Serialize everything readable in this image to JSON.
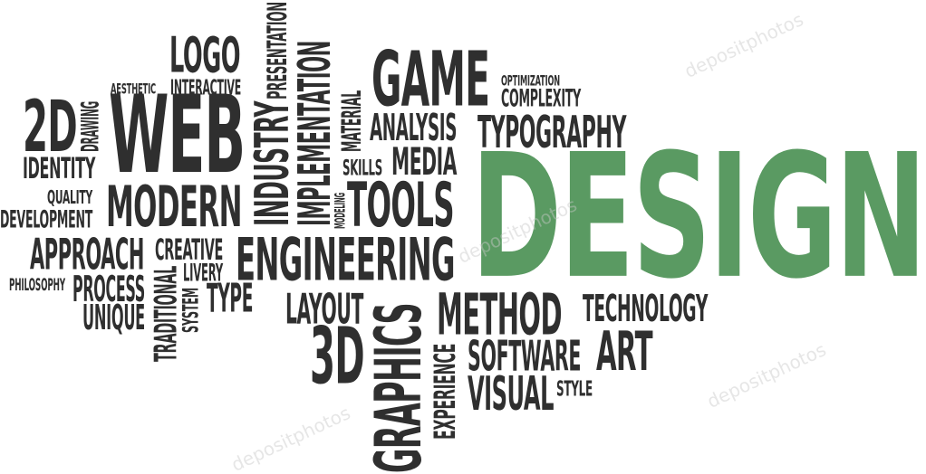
{
  "accent_color": "#5a9a62",
  "text_color": "#2f2f2f",
  "watermark": "depositphotos",
  "words": [
    {
      "key": "logo",
      "text": "LOGO"
    },
    {
      "key": "aesthetic",
      "text": "AESTHETIC"
    },
    {
      "key": "interactive",
      "text": "INTERACTIVE"
    },
    {
      "key": "presentation",
      "text": "PRESENTATION"
    },
    {
      "key": "implementation",
      "text": "IMPLEMENTATION"
    },
    {
      "key": "industry",
      "text": "INDUSTRY"
    },
    {
      "key": "material",
      "text": "MATERIAL"
    },
    {
      "key": "game",
      "text": "GAME"
    },
    {
      "key": "optimization",
      "text": "OPTIMIZATION"
    },
    {
      "key": "complexity",
      "text": "COMPLEXITY"
    },
    {
      "key": "2d",
      "text": "2D"
    },
    {
      "key": "drawing",
      "text": "DRAWING"
    },
    {
      "key": "web",
      "text": "WEB"
    },
    {
      "key": "analysis",
      "text": "ANALYSIS"
    },
    {
      "key": "typography",
      "text": "TYPOGRAPHY"
    },
    {
      "key": "identity",
      "text": "IDENTITY"
    },
    {
      "key": "skills",
      "text": "SKILLS"
    },
    {
      "key": "media",
      "text": "MEDIA"
    },
    {
      "key": "design",
      "text": "DESIGN"
    },
    {
      "key": "quality",
      "text": "QUALITY"
    },
    {
      "key": "development",
      "text": "DEVELOPMENT"
    },
    {
      "key": "modern",
      "text": "MODERN"
    },
    {
      "key": "modeling",
      "text": "MODELING"
    },
    {
      "key": "tools",
      "text": "TOOLS"
    },
    {
      "key": "approach",
      "text": "APPROACH"
    },
    {
      "key": "creative",
      "text": "CREATIVE"
    },
    {
      "key": "engineering",
      "text": "ENGINEERING"
    },
    {
      "key": "livery",
      "text": "LIVERY"
    },
    {
      "key": "philosophy",
      "text": "PHILOSOPHY"
    },
    {
      "key": "process",
      "text": "PROCESS"
    },
    {
      "key": "traditional",
      "text": "TRADITIONAL"
    },
    {
      "key": "system",
      "text": "SYSTEM"
    },
    {
      "key": "type",
      "text": "TYPE"
    },
    {
      "key": "layout",
      "text": "LAYOUT"
    },
    {
      "key": "method",
      "text": "METHOD"
    },
    {
      "key": "technology",
      "text": "TECHNOLOGY"
    },
    {
      "key": "unique",
      "text": "UNIQUE"
    },
    {
      "key": "graphics",
      "text": "GRAPHICS"
    },
    {
      "key": "3d",
      "text": "3D"
    },
    {
      "key": "software",
      "text": "SOFTWARE"
    },
    {
      "key": "art",
      "text": "ART"
    },
    {
      "key": "experience",
      "text": "EXPERIENCE"
    },
    {
      "key": "visual",
      "text": "VISUAL"
    },
    {
      "key": "style",
      "text": "STYLE"
    }
  ]
}
